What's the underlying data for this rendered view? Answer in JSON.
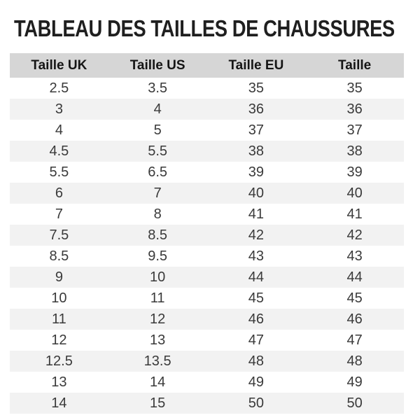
{
  "page_title": "TABLEAU DES TAILLES DE CHAUSSURES",
  "table": {
    "headers": [
      "Taille UK",
      "Taille US",
      "Taille EU",
      "Taille"
    ],
    "rows": [
      [
        "2.5",
        "3.5",
        "35",
        "35"
      ],
      [
        "3",
        "4",
        "36",
        "36"
      ],
      [
        "4",
        "5",
        "37",
        "37"
      ],
      [
        "4.5",
        "5.5",
        "38",
        "38"
      ],
      [
        "5.5",
        "6.5",
        "39",
        "39"
      ],
      [
        "6",
        "7",
        "40",
        "40"
      ],
      [
        "7",
        "8",
        "41",
        "41"
      ],
      [
        "7.5",
        "8.5",
        "42",
        "42"
      ],
      [
        "8.5",
        "9.5",
        "43",
        "43"
      ],
      [
        "9",
        "10",
        "44",
        "44"
      ],
      [
        "10",
        "11",
        "45",
        "45"
      ],
      [
        "11",
        "12",
        "46",
        "46"
      ],
      [
        "12",
        "13",
        "47",
        "47"
      ],
      [
        "12.5",
        "13.5",
        "48",
        "48"
      ],
      [
        "13",
        "14",
        "49",
        "49"
      ],
      [
        "14",
        "15",
        "50",
        "50"
      ]
    ]
  },
  "chart_data": {
    "type": "table",
    "title": "TABLEAU DES TAILLES DE CHAUSSURES",
    "columns": [
      "Taille UK",
      "Taille US",
      "Taille EU",
      "Taille"
    ],
    "rows": [
      [
        "2.5",
        "3.5",
        "35",
        "35"
      ],
      [
        "3",
        "4",
        "36",
        "36"
      ],
      [
        "4",
        "5",
        "37",
        "37"
      ],
      [
        "4.5",
        "5.5",
        "38",
        "38"
      ],
      [
        "5.5",
        "6.5",
        "39",
        "39"
      ],
      [
        "6",
        "7",
        "40",
        "40"
      ],
      [
        "7",
        "8",
        "41",
        "41"
      ],
      [
        "7.5",
        "8.5",
        "42",
        "42"
      ],
      [
        "8.5",
        "9.5",
        "43",
        "43"
      ],
      [
        "9",
        "10",
        "44",
        "44"
      ],
      [
        "10",
        "11",
        "45",
        "45"
      ],
      [
        "11",
        "12",
        "46",
        "46"
      ],
      [
        "12",
        "13",
        "47",
        "47"
      ],
      [
        "12.5",
        "13.5",
        "48",
        "48"
      ],
      [
        "13",
        "14",
        "49",
        "49"
      ],
      [
        "14",
        "15",
        "50",
        "50"
      ]
    ],
    "layout": {
      "zebra_striping": true,
      "header_position": "top",
      "text_align": "center"
    }
  },
  "colors": {
    "title_text": "#1f1f1f",
    "header_bg": "#d6d6d6",
    "header_text": "#151515",
    "row_stripe": "#f2f2f2",
    "row_bg": "#ffffff",
    "body_text": "#3a3a3a"
  }
}
